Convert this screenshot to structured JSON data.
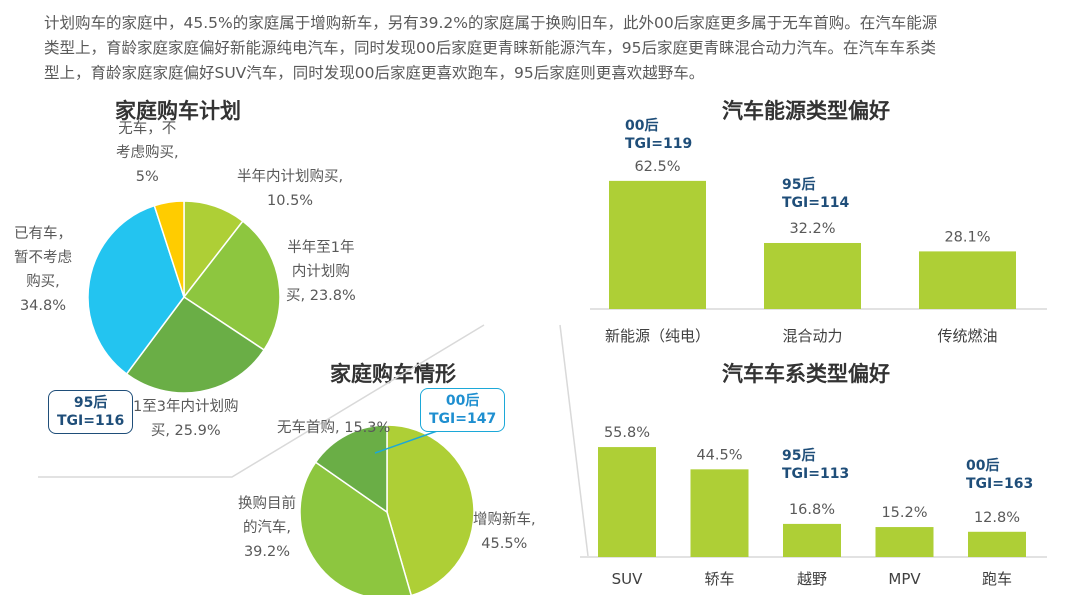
{
  "intro_lines": [
    "计划购车的家庭中，45.5%的家庭属于增购新车，另有39.2%的家庭属于换购旧车，此外00后家庭更多属于无车首购。在汽车能源",
    "类型上，育龄家庭家庭偏好新能源纯电汽车，同时发现00后家庭更青睐新能源汽车，95后家庭更青睐混合动力汽车。在汽车车系类",
    "型上，育龄家庭家庭偏好SUV汽车，同时发现00后家庭更喜欢跑车，95后家庭则更喜欢越野车。"
  ],
  "colors": {
    "bar": "#aecf36",
    "pie1": [
      "#aecf36",
      "#8dc63f",
      "#6aae46",
      "#23c4f0",
      "#ffcc00"
    ],
    "pie2": [
      "#aecf36",
      "#8dc63f",
      "#6aae46"
    ],
    "tgi_dark": "#1f4e79",
    "tgi_cyan": "#1ca8d8"
  },
  "chart_data": [
    {
      "type": "pie",
      "title": "家庭购车计划",
      "slices": [
        {
          "label_lines": [
            "半年内计划购买,",
            "10.5%"
          ],
          "value": 10.5
        },
        {
          "label_lines": [
            "半年至1年",
            "内计划购",
            "买, 23.8%"
          ],
          "value": 23.8
        },
        {
          "label_lines": [
            "1至3年内计划购",
            "买, 25.9%"
          ],
          "value": 25.9
        },
        {
          "label_lines": [
            "已有车，",
            "暂不考虑",
            "购买,",
            "34.8%"
          ],
          "value": 34.8
        },
        {
          "label_lines": [
            "无车，不",
            "考虑购买,",
            "5%"
          ],
          "value": 5
        }
      ],
      "annotation": {
        "line1": "95后",
        "line2": "TGI=116"
      }
    },
    {
      "type": "pie",
      "title": "家庭购车情形",
      "slices": [
        {
          "label_lines": [
            "增购新车,",
            "45.5%"
          ],
          "value": 45.5
        },
        {
          "label_lines": [
            "换购目前",
            "的汽车,",
            "39.2%"
          ],
          "value": 39.2
        },
        {
          "label_lines": [
            "无车首购, 15.3%"
          ],
          "value": 15.3
        }
      ],
      "annotation": {
        "line1": "00后",
        "line2": "TGI=147"
      }
    },
    {
      "type": "bar",
      "title": "汽车能源类型偏好",
      "categories": [
        "新能源（纯电）",
        "混合动力",
        "传统燃油"
      ],
      "values": [
        62.5,
        32.2,
        28.1
      ],
      "value_labels": [
        "62.5%",
        "32.2%",
        "28.1%"
      ],
      "annotations": [
        {
          "line1": "00后",
          "line2": "TGI=119"
        },
        {
          "line1": "95后",
          "line2": "TGI=114"
        }
      ]
    },
    {
      "type": "bar",
      "title": "汽车车系类型偏好",
      "categories": [
        "SUV",
        "轿车",
        "越野",
        "MPV",
        "跑车"
      ],
      "values": [
        55.8,
        44.5,
        16.8,
        15.2,
        12.8
      ],
      "value_labels": [
        "55.8%",
        "44.5%",
        "16.8%",
        "15.2%",
        "12.8%"
      ],
      "annotations": [
        {
          "line1": "95后",
          "line2": "TGI=113"
        },
        {
          "line1": "00后",
          "line2": "TGI=163"
        }
      ]
    }
  ]
}
